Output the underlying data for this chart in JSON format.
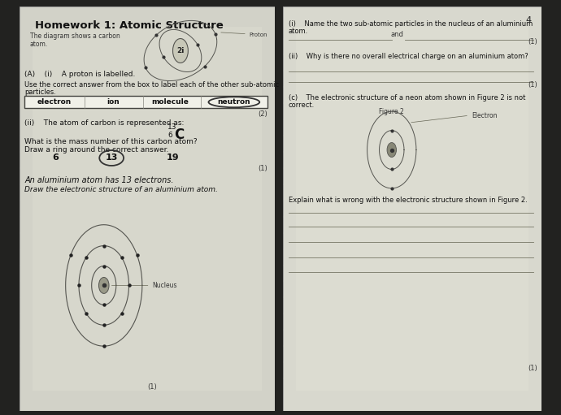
{
  "bg_top_color": "#1a1a1a",
  "bg_bottom_color": "#2a2a2a",
  "left_paper": "#d8d8ce",
  "right_paper": "#dcdcd2",
  "title": "Homework 1: Atomic Structure",
  "subtitle_line1": "The diagram shows a carbon",
  "subtitle_line2": "atom.",
  "page_number": "4",
  "sA_i": "(A)    (i)    A proton is labelled.",
  "sA_instr1": "Use the correct answer from the box to label each of the other sub-atomic",
  "sA_instr2": "particles.",
  "box_items": [
    "electron",
    "ion",
    "molecule",
    "neutron"
  ],
  "mark2": "(2)",
  "mark1a": "(1)",
  "sii_text": "(ii)    The atom of carbon is represented as:",
  "C_super": "13",
  "C_sub": "6",
  "C_elem": "C",
  "mass_q": "What is the mass number of this carbon atom?",
  "ring_instr": "Draw a ring around the correct answer.",
  "ring_opts": [
    "6",
    "13",
    "19"
  ],
  "ring_ans": "13",
  "al_text": "An aluminium atom has 13 electrons.",
  "draw_instr": "Draw the electronic structure of an aluminium atom.",
  "nucleus_lbl": "Nucleus",
  "proton_lbl": "Proton",
  "rq1_a": "(i)    Name the two sub-atomic particles in the nucleus of an aluminium",
  "rq1_b": "atom.",
  "rand": "and",
  "rm1": "(1)",
  "rq2": "(ii)    Why is there no overall electrical charge on an aluminium atom?",
  "rm2": "(1)",
  "rqc1": "(c)    The electronic structure of a neon atom shown in Figure 2 is not",
  "rqc2": "correct.",
  "fig2_lbl": "Figure 2",
  "elec_lbl": "Electron",
  "explain_q": "Explain what is wrong with the electronic structure shown in Figure 2.",
  "bmark": "(1)",
  "bmark2": "(1)"
}
